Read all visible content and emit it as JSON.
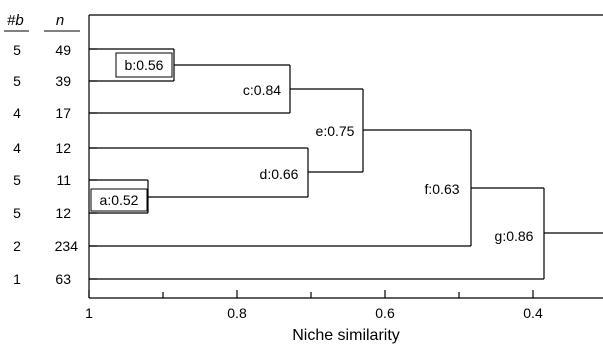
{
  "headers": {
    "b": "#b",
    "n": "n"
  },
  "rows": [
    {
      "b": "5",
      "n": "49"
    },
    {
      "b": "5",
      "n": "39"
    },
    {
      "b": "4",
      "n": "17"
    },
    {
      "b": "4",
      "n": "12"
    },
    {
      "b": "5",
      "n": "11"
    },
    {
      "b": "5",
      "n": "12"
    },
    {
      "b": "2",
      "n": "234"
    },
    {
      "b": "1",
      "n": "63"
    }
  ],
  "axis": {
    "title": "Niche similarity",
    "ticks": [
      "1",
      "0.8",
      "0.6",
      "0.4"
    ]
  },
  "nodes": {
    "a": "a:0.52",
    "b": "b:0.56",
    "c": "c:0.84",
    "d": "d:0.66",
    "e": "e:0.75",
    "f": "f:0.63",
    "g": "g:0.86"
  }
}
